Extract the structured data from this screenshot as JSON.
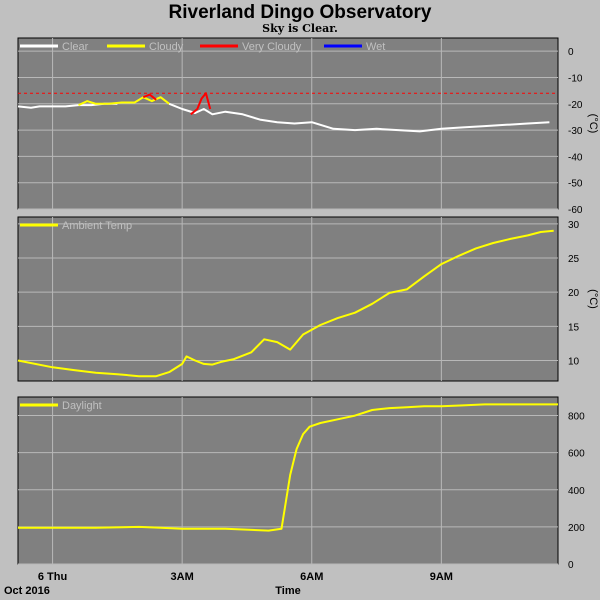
{
  "chart_data": {
    "title": "Riverland Dingo Observatory",
    "subtitle": "Sky is Clear.",
    "date_label": "Oct 2016",
    "xlabel": "Time",
    "x_ticks": [
      "6 Thu",
      "3AM",
      "6AM",
      "9AM"
    ],
    "x_tick_hours": [
      0,
      3,
      6,
      9
    ],
    "x_range_hours": [
      -0.8,
      11.7
    ],
    "panels": [
      {
        "type": "line",
        "name": "sky",
        "unit": "(°C)",
        "ylim": [
          -60,
          5
        ],
        "yticks": [
          0,
          -10,
          -20,
          -30,
          -40,
          -50,
          -60
        ],
        "threshold": {
          "value": -16,
          "color": "#ff0000",
          "style": "dashed"
        },
        "legend": [
          {
            "label": "Clear",
            "color": "#ffffff"
          },
          {
            "label": "Cloudy",
            "color": "#ffff00"
          },
          {
            "label": "Very Cloudy",
            "color": "#ff0000"
          },
          {
            "label": "Wet",
            "color": "#0000ff"
          }
        ],
        "series": [
          {
            "label": "Clear",
            "color": "#ffffff",
            "x": [
              -0.8,
              -0.5,
              -0.3,
              0,
              0.3,
              0.6,
              0.9,
              1.2,
              1.5
            ],
            "y": [
              -21,
              -21.5,
              -21,
              -21,
              -21,
              -20.5,
              -20.5,
              -20,
              -20
            ]
          },
          {
            "label": "Cloudy",
            "color": "#ffff00",
            "x": [
              0.6,
              0.8,
              1.0,
              1.3,
              1.6,
              1.9,
              2.1,
              2.3,
              2.5,
              2.7
            ],
            "y": [
              -20.5,
              -19,
              -20,
              -20,
              -19.5,
              -19.5,
              -17.5,
              -19,
              -17.5,
              -20
            ]
          },
          {
            "label": "Very Cloudy",
            "color": "#ff0000",
            "x": [
              2.1,
              2.25,
              2.4
            ],
            "y": [
              -17.5,
              -16.5,
              -18.5
            ]
          },
          {
            "label": "Clear",
            "color": "#ffffff",
            "x": [
              2.7,
              3.0,
              3.3,
              3.5,
              3.7,
              4.0,
              4.4,
              4.8,
              5.2,
              5.6,
              6.0,
              6.5,
              7.0,
              7.5,
              8.0,
              8.5,
              9.0,
              9.5,
              10.0,
              10.5,
              11.0,
              11.5
            ],
            "y": [
              -20,
              -22,
              -23.5,
              -22,
              -24,
              -23,
              -24,
              -26,
              -27,
              -27.5,
              -27,
              -29.5,
              -30,
              -29.5,
              -30,
              -30.5,
              -29.5,
              -29,
              -28.5,
              -28,
              -27.5,
              -27
            ]
          },
          {
            "label": "Very Cloudy",
            "color": "#ff0000",
            "x": [
              3.2,
              3.35,
              3.45,
              3.55,
              3.65
            ],
            "y": [
              -24,
              -22,
              -18,
              -16,
              -22
            ]
          }
        ]
      },
      {
        "type": "line",
        "name": "ambient",
        "unit": "(°C)",
        "ylim": [
          7,
          31
        ],
        "yticks": [
          30,
          25,
          20,
          15,
          10
        ],
        "legend": [
          {
            "label": "Ambient Temp",
            "color": "#ffff00"
          }
        ],
        "series": [
          {
            "label": "Ambient Temp",
            "color": "#ffff00",
            "x": [
              -0.8,
              0,
              0.5,
              1,
              1.5,
              2,
              2.4,
              2.7,
              3.0,
              3.1,
              3.3,
              3.5,
              3.7,
              3.9,
              4.2,
              4.6,
              4.9,
              5.2,
              5.5,
              5.8,
              6.2,
              6.6,
              7.0,
              7.4,
              7.8,
              8.2,
              8.6,
              9.0,
              9.4,
              9.8,
              10.2,
              10.6,
              11.0,
              11.3,
              11.6
            ],
            "y": [
              10,
              9,
              8.6,
              8.2,
              8,
              7.7,
              7.7,
              8.3,
              9.5,
              10.6,
              10,
              9.5,
              9.4,
              9.8,
              10.2,
              11.2,
              13.1,
              12.7,
              11.6,
              13.8,
              15.2,
              16.2,
              17,
              18.3,
              19.9,
              20.4,
              22.3,
              24.1,
              25.3,
              26.4,
              27.2,
              27.8,
              28.3,
              28.8,
              29
            ]
          }
        ]
      },
      {
        "type": "line",
        "name": "daylight",
        "unit": "",
        "ylim": [
          0,
          900
        ],
        "yticks": [
          800,
          600,
          400,
          200,
          0
        ],
        "legend": [
          {
            "label": "Daylight",
            "color": "#ffff00"
          }
        ],
        "series": [
          {
            "label": "Daylight",
            "color": "#ffff00",
            "x": [
              -0.8,
              0,
              1,
              2,
              2.5,
              3,
              4,
              5,
              5.3,
              5.5,
              5.65,
              5.8,
              5.95,
              6.2,
              6.6,
              7.0,
              7.4,
              7.8,
              8.2,
              8.6,
              9.0,
              9.5,
              10,
              10.5,
              11,
              11.5,
              11.7
            ],
            "y": [
              195,
              195,
              195,
              200,
              195,
              190,
              190,
              180,
              190,
              480,
              620,
              700,
              740,
              760,
              780,
              800,
              830,
              840,
              845,
              850,
              850,
              855,
              860,
              860,
              860,
              860,
              860
            ]
          }
        ]
      }
    ]
  }
}
